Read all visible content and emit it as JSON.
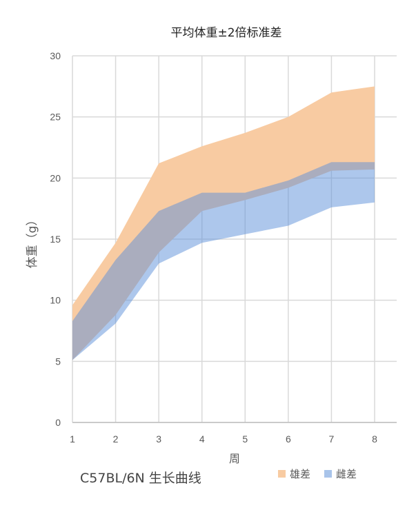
{
  "chart_data": {
    "type": "area",
    "title": "平均体重±2倍标准差",
    "xlabel": "周",
    "ylabel": "体重（g）",
    "x": [
      1,
      2,
      3,
      4,
      5,
      6,
      7,
      8
    ],
    "xlim": [
      1,
      8
    ],
    "ylim": [
      0,
      30
    ],
    "yticks": [
      0,
      5,
      10,
      15,
      20,
      25,
      30
    ],
    "grid": true,
    "legend_position": "bottom-right",
    "series": [
      {
        "name": "雄差",
        "color": "#F8CBA2",
        "lower": [
          5.1,
          8.8,
          13.9,
          17.3,
          18.2,
          19.2,
          20.6,
          20.7
        ],
        "upper": [
          9.6,
          14.7,
          21.2,
          22.6,
          23.7,
          25.0,
          27.0,
          27.5
        ]
      },
      {
        "name": "雌差",
        "color": "#5B8FD9",
        "lower": [
          5.1,
          8.1,
          13.0,
          14.7,
          15.4,
          16.1,
          17.6,
          18.0
        ],
        "upper": [
          8.3,
          13.3,
          17.3,
          18.8,
          18.8,
          19.8,
          21.3,
          21.3
        ]
      }
    ]
  },
  "footer": "C57BL/6N  生长曲线"
}
